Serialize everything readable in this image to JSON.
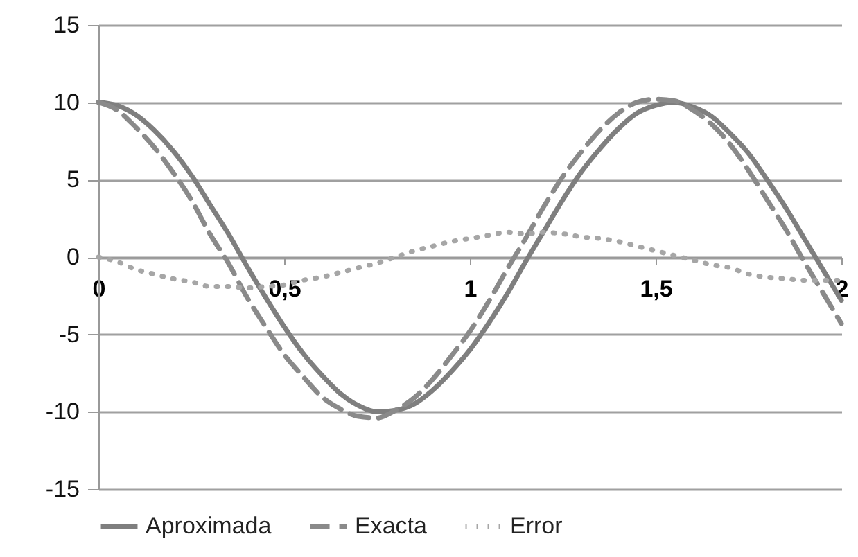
{
  "chart_data": {
    "type": "line",
    "x": [
      0,
      0.05,
      0.1,
      0.15,
      0.2,
      0.25,
      0.3,
      0.35,
      0.4,
      0.45,
      0.5,
      0.55,
      0.6,
      0.65,
      0.7,
      0.75,
      0.8,
      0.85,
      0.9,
      0.95,
      1,
      1.05,
      1.1,
      1.15,
      1.2,
      1.25,
      1.3,
      1.35,
      1.4,
      1.45,
      1.5,
      1.55,
      1.6,
      1.65,
      1.7,
      1.75,
      1.8,
      1.85,
      1.9,
      1.95,
      2
    ],
    "series": [
      {
        "name": "Aproximada",
        "color": "#7f7f7f",
        "line_style": "solid",
        "values": [
          10,
          9.8,
          9.2,
          8.2,
          6.9,
          5.3,
          3.4,
          1.5,
          -0.6,
          -2.6,
          -4.5,
          -6.2,
          -7.6,
          -8.8,
          -9.6,
          -10,
          -9.9,
          -9.5,
          -8.6,
          -7.4,
          -6,
          -4.3,
          -2.4,
          -0.3,
          1.7,
          3.7,
          5.5,
          7,
          8.3,
          9.3,
          9.8,
          10,
          9.7,
          9.1,
          8,
          6.7,
          5,
          3.2,
          1.2,
          -0.8,
          -2.8
        ]
      },
      {
        "name": "Exacta",
        "color": "#8a8a8a",
        "line_style": "dashed",
        "values": [
          10,
          9.5,
          8.4,
          7.1,
          5.5,
          3.7,
          1.5,
          -0.4,
          -2.6,
          -4.5,
          -6.3,
          -7.7,
          -9,
          -9.8,
          -10.3,
          -10.4,
          -9.9,
          -9.1,
          -7.9,
          -6.4,
          -4.8,
          -2.9,
          -0.8,
          1.2,
          3.3,
          5.2,
          6.8,
          8.2,
          9.3,
          10,
          10.2,
          10.1,
          9.5,
          8.6,
          7.3,
          5.6,
          3.7,
          1.8,
          -0.3,
          -2.3,
          -4.3
        ]
      },
      {
        "name": "Error",
        "color": "#a6a6a6",
        "line_style": "dotted",
        "values": [
          0,
          -0.3,
          -0.8,
          -1.1,
          -1.4,
          -1.6,
          -1.9,
          -1.9,
          -2,
          -1.9,
          -1.8,
          -1.5,
          -1.3,
          -1,
          -0.7,
          -0.4,
          0,
          0.4,
          0.7,
          1,
          1.2,
          1.4,
          1.6,
          1.5,
          1.6,
          1.5,
          1.3,
          1.2,
          1,
          0.7,
          0.4,
          0.1,
          -0.2,
          -0.5,
          -0.7,
          -1.1,
          -1.3,
          -1.4,
          -1.5,
          -1.5,
          -1.5
        ]
      }
    ],
    "xlim": [
      0,
      2
    ],
    "xticks": [
      0,
      {
        "value": 0.5,
        "label": "0,5"
      },
      1,
      {
        "value": 1.5,
        "label": "1,5"
      },
      2
    ],
    "ylim": [
      -15,
      15
    ],
    "yticks": [
      -15,
      -10,
      -5,
      0,
      5,
      10,
      15
    ],
    "grid": "y",
    "legend": "bottom"
  }
}
